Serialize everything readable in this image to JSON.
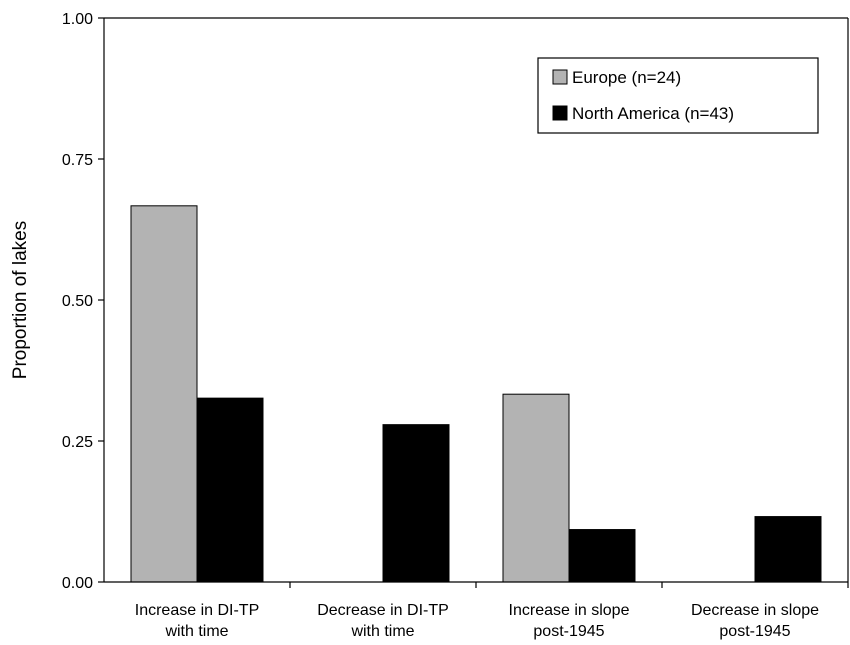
{
  "chart_data": {
    "type": "bar",
    "title": "",
    "ylabel": "Proportion of lakes",
    "xlabel": "",
    "ylim": [
      0,
      1.0
    ],
    "yticks": [
      "0.00",
      "0.25",
      "0.50",
      "0.75",
      "1.00"
    ],
    "ytick_values": [
      0,
      0.25,
      0.5,
      0.75,
      1.0
    ],
    "categories": [
      [
        "Increase in DI-TP",
        "with time"
      ],
      [
        "Decrease in DI-TP",
        "with time"
      ],
      [
        "Increase in slope",
        "post-1945"
      ],
      [
        "Decrease in slope",
        "post-1945"
      ]
    ],
    "series": [
      {
        "name": "Europe (n=24)",
        "color": "#b3b3b3",
        "values": [
          0.667,
          0.0,
          0.333,
          0.0
        ]
      },
      {
        "name": "North America (n=43)",
        "color": "#000000",
        "values": [
          0.326,
          0.279,
          0.093,
          0.116
        ]
      }
    ],
    "grid": false,
    "legend_position": "top-right"
  }
}
